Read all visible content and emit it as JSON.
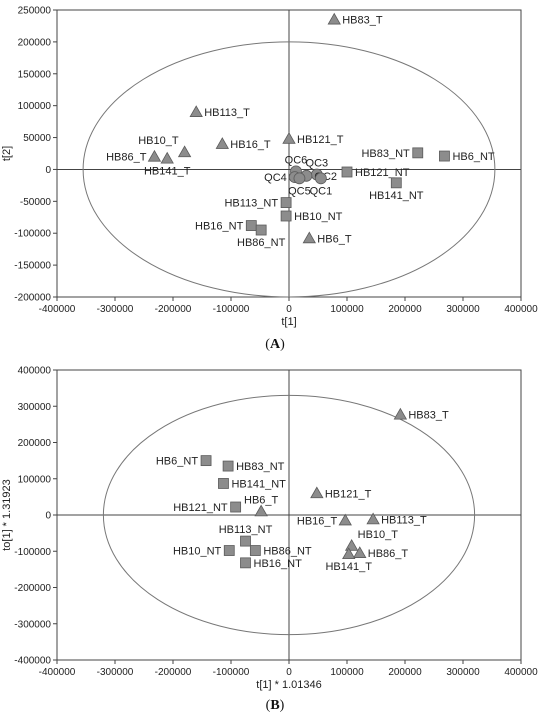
{
  "captions": {
    "a_open": "(",
    "a_letter": "A",
    "a_close": ")",
    "b_open": "(",
    "b_letter": "B",
    "b_close": ")"
  },
  "chart_data": [
    {
      "type": "scatter",
      "title": "",
      "xlabel": "t[1]",
      "ylabel": "t[2]",
      "xlim": [
        -400000,
        400000
      ],
      "ylim": [
        -200000,
        250000
      ],
      "xticks": [
        -400000,
        -300000,
        -200000,
        -100000,
        0,
        100000,
        200000,
        300000,
        400000
      ],
      "yticks": [
        -200000,
        -150000,
        -100000,
        -50000,
        0,
        50000,
        100000,
        150000,
        200000,
        250000
      ],
      "grid": false,
      "ellipse": {
        "center": [
          0,
          0
        ],
        "rx": 355000,
        "ry": 200000
      },
      "colors": {
        "marker": "#8c8c8c",
        "marker_edge": "#5a5a5a",
        "ellipse": "#777777",
        "axis": "#444444"
      },
      "points": [
        {
          "label": "HB83_T",
          "x": 78000,
          "y": 235000,
          "shape": "triangle",
          "label_pos": "right"
        },
        {
          "label": "HB113_T",
          "x": -160000,
          "y": 90000,
          "shape": "triangle",
          "label_pos": "right"
        },
        {
          "label": "HB10_T",
          "x": -180000,
          "y": 27000,
          "shape": "triangle",
          "label_pos": "above-left"
        },
        {
          "label": "HB86_T",
          "x": -232000,
          "y": 20000,
          "shape": "triangle",
          "label_pos": "left"
        },
        {
          "label": "HB141_T",
          "x": -210000,
          "y": 17000,
          "shape": "triangle",
          "label_pos": "below"
        },
        {
          "label": "HB16_T",
          "x": -115000,
          "y": 40000,
          "shape": "triangle",
          "label_pos": "right"
        },
        {
          "label": "HB121_T",
          "x": 0,
          "y": 48000,
          "shape": "triangle",
          "label_pos": "right"
        },
        {
          "label": "HB6_T",
          "x": 35000,
          "y": -108000,
          "shape": "triangle",
          "label_pos": "right"
        },
        {
          "label": "HB83_NT",
          "x": 222000,
          "y": 26000,
          "shape": "square",
          "label_pos": "left"
        },
        {
          "label": "HB6_NT",
          "x": 268000,
          "y": 21000,
          "shape": "square",
          "label_pos": "right"
        },
        {
          "label": "HB121_NT",
          "x": 100000,
          "y": -4000,
          "shape": "square",
          "label_pos": "right"
        },
        {
          "label": "HB141_NT",
          "x": 185000,
          "y": -21000,
          "shape": "square",
          "label_pos": "below"
        },
        {
          "label": "HB113_NT",
          "x": -5000,
          "y": -52000,
          "shape": "square",
          "label_pos": "left"
        },
        {
          "label": "HB10_NT",
          "x": -5000,
          "y": -73000,
          "shape": "square",
          "label_pos": "right"
        },
        {
          "label": "HB16_NT",
          "x": -65000,
          "y": -88000,
          "shape": "square",
          "label_pos": "left"
        },
        {
          "label": "HB86_NT",
          "x": -48000,
          "y": -95000,
          "shape": "square",
          "label_pos": "below"
        },
        {
          "label": "QC6",
          "x": 12000,
          "y": -3000,
          "shape": "circle",
          "label_pos": "above"
        },
        {
          "label": "QC3",
          "x": 48000,
          "y": -8000,
          "shape": "circle",
          "label_pos": "above"
        },
        {
          "label": "QC4",
          "x": 10000,
          "y": -12000,
          "shape": "circle",
          "label_pos": "left"
        },
        {
          "label": "QC2",
          "x": 30000,
          "y": -10000,
          "shape": "circle",
          "label_pos": "right"
        },
        {
          "label": "QC5",
          "x": 18000,
          "y": -14000,
          "shape": "circle",
          "label_pos": "below"
        },
        {
          "label": "QC1",
          "x": 55000,
          "y": -14000,
          "shape": "circle",
          "label_pos": "below"
        }
      ]
    },
    {
      "type": "scatter",
      "title": "",
      "xlabel": "t[1] * 1.01346",
      "ylabel": "to[1] * 1.31923",
      "xlim": [
        -400000,
        400000
      ],
      "ylim": [
        -400000,
        400000
      ],
      "xticks": [
        -400000,
        -300000,
        -200000,
        -100000,
        0,
        100000,
        200000,
        300000,
        400000
      ],
      "yticks": [
        -400000,
        -300000,
        -200000,
        -100000,
        0,
        100000,
        200000,
        300000,
        400000
      ],
      "grid": false,
      "ellipse": {
        "center": [
          0,
          0
        ],
        "rx": 320000,
        "ry": 330000
      },
      "colors": {
        "marker": "#8c8c8c",
        "marker_edge": "#5a5a5a",
        "ellipse": "#777777",
        "axis": "#444444"
      },
      "points": [
        {
          "label": "HB83_T",
          "x": 192000,
          "y": 277000,
          "shape": "triangle",
          "label_pos": "right"
        },
        {
          "label": "HB6_NT",
          "x": -143000,
          "y": 150000,
          "shape": "square",
          "label_pos": "left"
        },
        {
          "label": "HB83_NT",
          "x": -105000,
          "y": 135000,
          "shape": "square",
          "label_pos": "right"
        },
        {
          "label": "HB141_NT",
          "x": -113000,
          "y": 87000,
          "shape": "square",
          "label_pos": "right"
        },
        {
          "label": "HB121_T",
          "x": 48000,
          "y": 60000,
          "shape": "triangle",
          "label_pos": "right"
        },
        {
          "label": "HB6_T",
          "x": -48000,
          "y": 10000,
          "shape": "triangle",
          "label_pos": "above"
        },
        {
          "label": "HB121_NT",
          "x": -92000,
          "y": 22000,
          "shape": "square",
          "label_pos": "left"
        },
        {
          "label": "HB16_T",
          "x": 97000,
          "y": -15000,
          "shape": "triangle",
          "label_pos": "left"
        },
        {
          "label": "HB113_T",
          "x": 145000,
          "y": -12000,
          "shape": "triangle",
          "label_pos": "right"
        },
        {
          "label": "HB113_NT",
          "x": -75000,
          "y": -72000,
          "shape": "square",
          "label_pos": "above"
        },
        {
          "label": "HB10_T",
          "x": 108000,
          "y": -85000,
          "shape": "triangle",
          "label_pos": "above-right"
        },
        {
          "label": "HB10_NT",
          "x": -103000,
          "y": -98000,
          "shape": "square",
          "label_pos": "left"
        },
        {
          "label": "HB86_NT",
          "x": -58000,
          "y": -98000,
          "shape": "square",
          "label_pos": "right"
        },
        {
          "label": "HB86_T",
          "x": 122000,
          "y": -105000,
          "shape": "triangle",
          "label_pos": "right"
        },
        {
          "label": "HB141_T",
          "x": 103000,
          "y": -108000,
          "shape": "triangle",
          "label_pos": "below"
        },
        {
          "label": "HB16_NT",
          "x": -75000,
          "y": -132000,
          "shape": "square",
          "label_pos": "right"
        }
      ]
    }
  ]
}
